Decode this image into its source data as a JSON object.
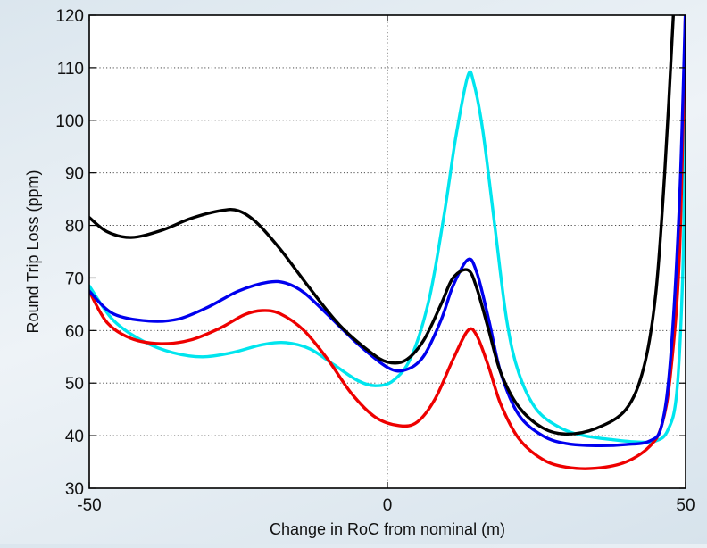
{
  "chart_data": {
    "type": "line",
    "xlabel": "Change in RoC from nominal (m)",
    "ylabel": "Round Trip Loss (ppm)",
    "xlim": [
      -50,
      50
    ],
    "ylim": [
      30,
      120
    ],
    "x_ticks": [
      -50,
      0,
      50
    ],
    "y_ticks": [
      30,
      40,
      50,
      60,
      70,
      80,
      90,
      100,
      110,
      120
    ],
    "x_grid": [
      0
    ],
    "y_grid": [
      40,
      50,
      60,
      70,
      80,
      90,
      100,
      110
    ],
    "grid": true,
    "series": [
      {
        "color": "#000000",
        "points": [
          [
            -50,
            81.5
          ],
          [
            -47,
            78.8
          ],
          [
            -43,
            77.7
          ],
          [
            -38,
            79
          ],
          [
            -33,
            81.3
          ],
          [
            -28,
            82.8
          ],
          [
            -25,
            82.8
          ],
          [
            -22,
            80.6
          ],
          [
            -18,
            75.5
          ],
          [
            -13,
            68
          ],
          [
            -8,
            61
          ],
          [
            -3,
            56
          ],
          [
            0,
            54
          ],
          [
            3,
            54.3
          ],
          [
            6,
            58
          ],
          [
            9,
            65
          ],
          [
            11,
            70
          ],
          [
            13.5,
            71.5
          ],
          [
            15,
            68
          ],
          [
            17,
            60
          ],
          [
            19,
            52
          ],
          [
            22,
            45.5
          ],
          [
            26,
            41.5
          ],
          [
            30,
            40.3
          ],
          [
            35,
            41.4
          ],
          [
            40,
            45
          ],
          [
            43,
            53
          ],
          [
            45,
            67
          ],
          [
            46.5,
            90
          ],
          [
            48,
            121
          ]
        ]
      },
      {
        "color": "#0000ee",
        "points": [
          [
            -50,
            67.5
          ],
          [
            -46,
            63.2
          ],
          [
            -40,
            61.8
          ],
          [
            -35,
            62.2
          ],
          [
            -30,
            64.5
          ],
          [
            -25,
            67.5
          ],
          [
            -20,
            69.2
          ],
          [
            -17,
            69
          ],
          [
            -14,
            67.2
          ],
          [
            -10,
            63
          ],
          [
            -5,
            57.5
          ],
          [
            0,
            53
          ],
          [
            3,
            52.5
          ],
          [
            6,
            55
          ],
          [
            9,
            62
          ],
          [
            11,
            68.5
          ],
          [
            13.5,
            73.5
          ],
          [
            15,
            71
          ],
          [
            17,
            62
          ],
          [
            19,
            52
          ],
          [
            22,
            44
          ],
          [
            26,
            40
          ],
          [
            30,
            38.5
          ],
          [
            35,
            38.1
          ],
          [
            40,
            38.3
          ],
          [
            44,
            39
          ],
          [
            46,
            42
          ],
          [
            47.5,
            55
          ],
          [
            49,
            85
          ],
          [
            50,
            122
          ]
        ]
      },
      {
        "color": "#ee0000",
        "points": [
          [
            -50,
            67.5
          ],
          [
            -47,
            61.5
          ],
          [
            -43,
            58.5
          ],
          [
            -38,
            57.5
          ],
          [
            -33,
            58.2
          ],
          [
            -28,
            60.5
          ],
          [
            -24,
            63
          ],
          [
            -21,
            63.8
          ],
          [
            -18,
            63.2
          ],
          [
            -14,
            60
          ],
          [
            -10,
            54.5
          ],
          [
            -6,
            48
          ],
          [
            -2,
            43.5
          ],
          [
            2,
            41.9
          ],
          [
            5,
            42.6
          ],
          [
            8,
            47
          ],
          [
            11,
            54.5
          ],
          [
            13.5,
            60
          ],
          [
            15,
            59
          ],
          [
            17,
            53
          ],
          [
            19,
            46
          ],
          [
            22,
            39.5
          ],
          [
            26,
            35.5
          ],
          [
            30,
            34
          ],
          [
            35,
            33.8
          ],
          [
            40,
            35
          ],
          [
            44,
            38
          ],
          [
            46,
            42
          ],
          [
            47.5,
            52
          ],
          [
            49,
            75
          ],
          [
            50,
            122
          ]
        ]
      },
      {
        "color": "#00e5ee",
        "points": [
          [
            -50,
            68.5
          ],
          [
            -46,
            62
          ],
          [
            -41,
            58
          ],
          [
            -36,
            55.8
          ],
          [
            -31,
            55
          ],
          [
            -26,
            55.8
          ],
          [
            -21,
            57.3
          ],
          [
            -17,
            57.7
          ],
          [
            -13,
            56.5
          ],
          [
            -9,
            53.5
          ],
          [
            -5,
            50.5
          ],
          [
            -2,
            49.5
          ],
          [
            1,
            50.5
          ],
          [
            4,
            55
          ],
          [
            7,
            66
          ],
          [
            9.5,
            82
          ],
          [
            11.5,
            97
          ],
          [
            13.5,
            108.5
          ],
          [
            14.5,
            107
          ],
          [
            16,
            98
          ],
          [
            18,
            80
          ],
          [
            20,
            62
          ],
          [
            22,
            52
          ],
          [
            25,
            45
          ],
          [
            29,
            41.5
          ],
          [
            33,
            40
          ],
          [
            38,
            39.2
          ],
          [
            42,
            38.8
          ],
          [
            45,
            39
          ],
          [
            47,
            41
          ],
          [
            48.5,
            48
          ],
          [
            49.5,
            70
          ],
          [
            50,
            100
          ]
        ]
      }
    ]
  }
}
